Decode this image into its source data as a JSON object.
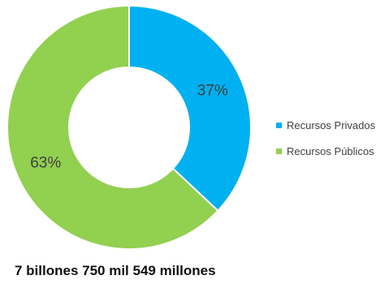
{
  "chart_data": {
    "type": "pie",
    "donut": true,
    "slices": [
      {
        "label": "Recursos Privados",
        "value": 37,
        "value_label": "37%",
        "color": "#00B0F0"
      },
      {
        "label": "Recursos Públicos",
        "value": 63,
        "value_label": "63%",
        "color": "#92D050"
      }
    ],
    "legend_position": "right",
    "caption": "7 billones 750 mil 549 millones"
  }
}
